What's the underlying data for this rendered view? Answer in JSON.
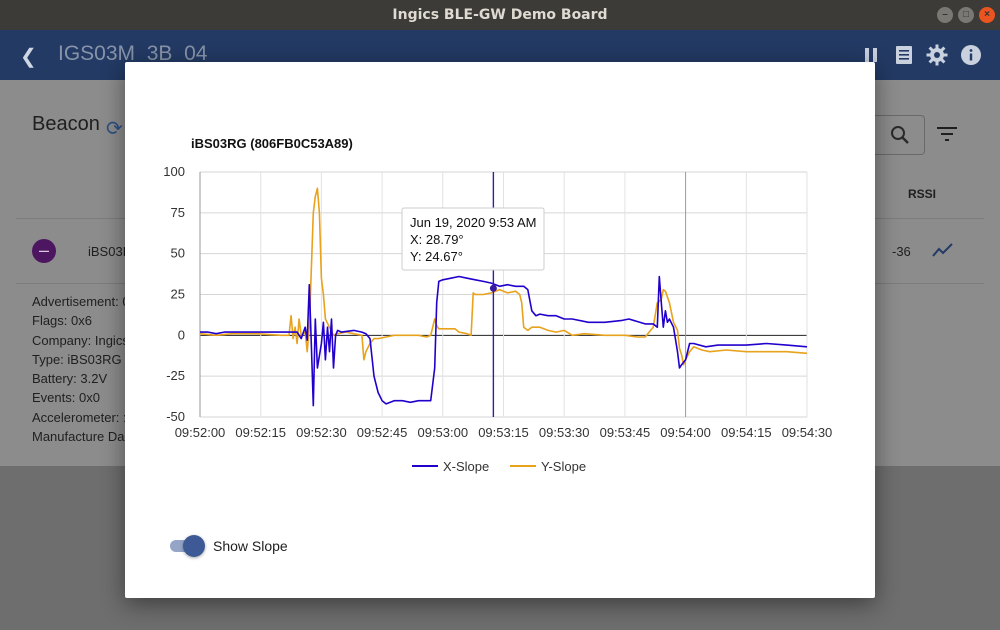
{
  "window": {
    "title": "Ingics BLE-GW Demo Board"
  },
  "appbar": {
    "device_name": "IGS03M_3B_04"
  },
  "page": {
    "heading": "Beacon",
    "rssi_header": "RSSI",
    "row": {
      "name": "iBS03R",
      "rssi": "-36"
    },
    "details": [
      "Advertisement: 0",
      "Flags: 0x6",
      "Company: Ingics",
      "Type: iBS03RG",
      "Battery: 3.2V",
      "Events: 0x0",
      "Accelerometer: :",
      "Manufacture Da"
    ]
  },
  "dialog": {
    "show_slope_label": "Show Slope",
    "show_slope_on": true
  },
  "colors": {
    "x_slope": "#2200cc",
    "y_slope": "#e8a21c",
    "appbar": "#233a64",
    "toggle": "#3d5a96"
  },
  "chart_data": {
    "type": "line",
    "title": "iBS03RG (806FB0C53A89)",
    "ylim": [
      -50,
      100
    ],
    "y_ticks": [
      "100",
      "75",
      "50",
      "25",
      "0",
      "-25",
      "-50"
    ],
    "x_ticks": [
      "09:52:00",
      "09:52:15",
      "09:52:30",
      "09:52:45",
      "09:53:00",
      "09:53:15",
      "09:53:30",
      "09:53:45",
      "09:54:00",
      "09:54:15",
      "09:54:30"
    ],
    "x_range_seconds": [
      0,
      150
    ],
    "legend_position": "bottom",
    "series": [
      {
        "name": "X-Slope",
        "color": "#2200cc",
        "points": [
          [
            0,
            2
          ],
          [
            2,
            2
          ],
          [
            4,
            1
          ],
          [
            6,
            2
          ],
          [
            10,
            2
          ],
          [
            14,
            2
          ],
          [
            20,
            2
          ],
          [
            24,
            2
          ],
          [
            25,
            -2
          ],
          [
            26,
            5
          ],
          [
            26.5,
            -3
          ],
          [
            27,
            31
          ],
          [
            27.5,
            -5
          ],
          [
            28,
            -43
          ],
          [
            28.5,
            10
          ],
          [
            29,
            -20
          ],
          [
            30,
            -5
          ],
          [
            30.5,
            8
          ],
          [
            31,
            -15
          ],
          [
            31.5,
            5
          ],
          [
            32,
            -10
          ],
          [
            32.5,
            10
          ],
          [
            33,
            -20
          ],
          [
            33.5,
            0
          ],
          [
            34,
            3
          ],
          [
            35,
            2
          ],
          [
            38,
            3
          ],
          [
            40,
            2
          ],
          [
            41,
            1
          ],
          [
            42,
            -2
          ],
          [
            43,
            -25
          ],
          [
            44,
            -35
          ],
          [
            45,
            -40
          ],
          [
            46,
            -42
          ],
          [
            48,
            -40
          ],
          [
            50,
            -40
          ],
          [
            52,
            -41
          ],
          [
            54,
            -40
          ],
          [
            57,
            -40
          ],
          [
            58,
            -20
          ],
          [
            58.5,
            20
          ],
          [
            59,
            33
          ],
          [
            60,
            34
          ],
          [
            62,
            35
          ],
          [
            64,
            36
          ],
          [
            66,
            35
          ],
          [
            68,
            34
          ],
          [
            70,
            33
          ],
          [
            72,
            32
          ],
          [
            74,
            30
          ],
          [
            76,
            31
          ],
          [
            78,
            30
          ],
          [
            80,
            30
          ],
          [
            81,
            28
          ],
          [
            82,
            15
          ],
          [
            83,
            12
          ],
          [
            84,
            13
          ],
          [
            86,
            12
          ],
          [
            88,
            12
          ],
          [
            90,
            10
          ],
          [
            92,
            10
          ],
          [
            96,
            8
          ],
          [
            100,
            8
          ],
          [
            104,
            9
          ],
          [
            106,
            10
          ],
          [
            110,
            7
          ],
          [
            112,
            7
          ],
          [
            113,
            5
          ],
          [
            113.5,
            36
          ],
          [
            114,
            20
          ],
          [
            114.5,
            5
          ],
          [
            115,
            15
          ],
          [
            115.5,
            8
          ],
          [
            116,
            10
          ],
          [
            117,
            5
          ],
          [
            118,
            -10
          ],
          [
            118.5,
            -20
          ],
          [
            119,
            -18
          ],
          [
            120,
            -15
          ],
          [
            121,
            -5
          ],
          [
            122,
            -5
          ],
          [
            125,
            -7
          ],
          [
            128,
            -6
          ],
          [
            135,
            -6
          ],
          [
            140,
            -5
          ],
          [
            145,
            -6
          ],
          [
            150,
            -7
          ]
        ]
      },
      {
        "name": "Y-Slope",
        "color": "#e8a21c",
        "points": [
          [
            0,
            1
          ],
          [
            4,
            0
          ],
          [
            8,
            1
          ],
          [
            14,
            1
          ],
          [
            20,
            0
          ],
          [
            22,
            0
          ],
          [
            22.5,
            12
          ],
          [
            23,
            -2
          ],
          [
            23.5,
            5
          ],
          [
            24,
            -5
          ],
          [
            24.5,
            10
          ],
          [
            25,
            0
          ],
          [
            26,
            2
          ],
          [
            26.5,
            -10
          ],
          [
            27,
            5
          ],
          [
            27.5,
            40
          ],
          [
            28,
            75
          ],
          [
            28.5,
            85
          ],
          [
            29,
            90
          ],
          [
            29.5,
            75
          ],
          [
            30,
            35
          ],
          [
            30.5,
            25
          ],
          [
            31,
            10
          ],
          [
            32,
            5
          ],
          [
            33,
            0
          ],
          [
            34,
            1
          ],
          [
            36,
            2
          ],
          [
            38,
            1
          ],
          [
            40,
            0
          ],
          [
            40.5,
            -15
          ],
          [
            41,
            -10
          ],
          [
            42,
            -5
          ],
          [
            43,
            -2
          ],
          [
            44,
            -2
          ],
          [
            46,
            -1
          ],
          [
            48,
            0
          ],
          [
            50,
            0
          ],
          [
            54,
            0
          ],
          [
            56,
            -1
          ],
          [
            57,
            0
          ],
          [
            58,
            10
          ],
          [
            58.5,
            6
          ],
          [
            59,
            4
          ],
          [
            60,
            4
          ],
          [
            63,
            4
          ],
          [
            64,
            2
          ],
          [
            66,
            1
          ],
          [
            67,
            0
          ],
          [
            67.5,
            26
          ],
          [
            68,
            25
          ],
          [
            70,
            25
          ],
          [
            72,
            26
          ],
          [
            74,
            28
          ],
          [
            76,
            26
          ],
          [
            78,
            27
          ],
          [
            79,
            25
          ],
          [
            79.5,
            20
          ],
          [
            80,
            5
          ],
          [
            81,
            3
          ],
          [
            82,
            5
          ],
          [
            84,
            5
          ],
          [
            86,
            3
          ],
          [
            88,
            2
          ],
          [
            90,
            3
          ],
          [
            92,
            0
          ],
          [
            95,
            1
          ],
          [
            100,
            0
          ],
          [
            105,
            0
          ],
          [
            108,
            -1
          ],
          [
            110,
            -1
          ],
          [
            112,
            5
          ],
          [
            113,
            20
          ],
          [
            114,
            22
          ],
          [
            114.5,
            28
          ],
          [
            115,
            27
          ],
          [
            116,
            20
          ],
          [
            117,
            8
          ],
          [
            118,
            3
          ],
          [
            118.5,
            -8
          ],
          [
            119,
            -12
          ],
          [
            119.5,
            -18
          ],
          [
            120,
            -15
          ],
          [
            121,
            -10
          ],
          [
            122,
            -7
          ],
          [
            124,
            -9
          ],
          [
            126,
            -10
          ],
          [
            130,
            -9
          ],
          [
            135,
            -10
          ],
          [
            140,
            -10
          ],
          [
            145,
            -10
          ],
          [
            150,
            -11
          ]
        ]
      }
    ],
    "tooltip": {
      "date": "Jun 19, 2020 9:53 AM",
      "x_line": "X: 28.79°",
      "y_line": "Y: 24.67°",
      "at_seconds": 72.5,
      "x_value": 28.79,
      "y_value": 24.67
    }
  }
}
